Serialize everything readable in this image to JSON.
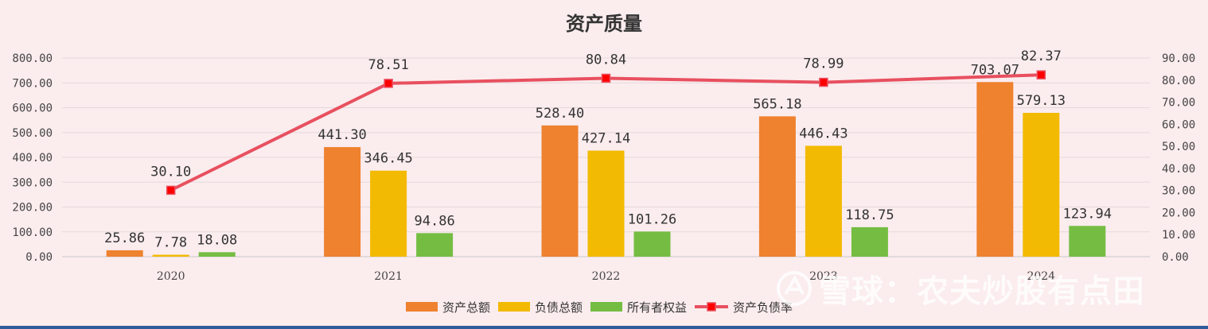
{
  "chart_data": {
    "type": "bar",
    "title": "资产质量",
    "categories": [
      "2020",
      "2021",
      "2022",
      "2023",
      "2024"
    ],
    "series": [
      {
        "name": "资产总额",
        "type": "bar",
        "axis": "left",
        "color": "#ee822f",
        "values": [
          25.86,
          441.3,
          528.4,
          565.18,
          703.07
        ],
        "labels": [
          "25.86",
          "441.30",
          "528.40",
          "565.18",
          "703.07"
        ]
      },
      {
        "name": "负债总额",
        "type": "bar",
        "axis": "left",
        "color": "#f2ba02",
        "values": [
          7.78,
          346.45,
          427.14,
          446.43,
          579.13
        ],
        "labels": [
          "7.78",
          "346.45",
          "427.14",
          "446.43",
          "579.13"
        ]
      },
      {
        "name": "所有者权益",
        "type": "bar",
        "axis": "left",
        "color": "#75bd42",
        "values": [
          18.08,
          94.86,
          101.26,
          118.75,
          123.94
        ],
        "labels": [
          "18.08",
          "94.86",
          "101.26",
          "118.75",
          "123.94"
        ]
      },
      {
        "name": "资产负债率",
        "type": "line",
        "axis": "right",
        "color": "#e8505f",
        "marker_color": "#ff0000",
        "values": [
          30.1,
          78.51,
          80.84,
          78.99,
          82.37
        ],
        "labels": [
          "30.10",
          "78.51",
          "80.84",
          "78.99",
          "82.37"
        ]
      }
    ],
    "y_left": {
      "min": 0,
      "max": 800,
      "ticks": [
        "0.00",
        "100.00",
        "200.00",
        "300.00",
        "400.00",
        "500.00",
        "600.00",
        "700.00",
        "800.00"
      ]
    },
    "y_right": {
      "min": 0,
      "max": 90,
      "ticks": [
        "0.00",
        "10.00",
        "20.00",
        "30.00",
        "40.00",
        "50.00",
        "60.00",
        "70.00",
        "80.00",
        "90.00"
      ]
    },
    "grid": true,
    "legend_position": "bottom"
  },
  "watermark": {
    "text": "雪球：农夫炒股有点田"
  }
}
